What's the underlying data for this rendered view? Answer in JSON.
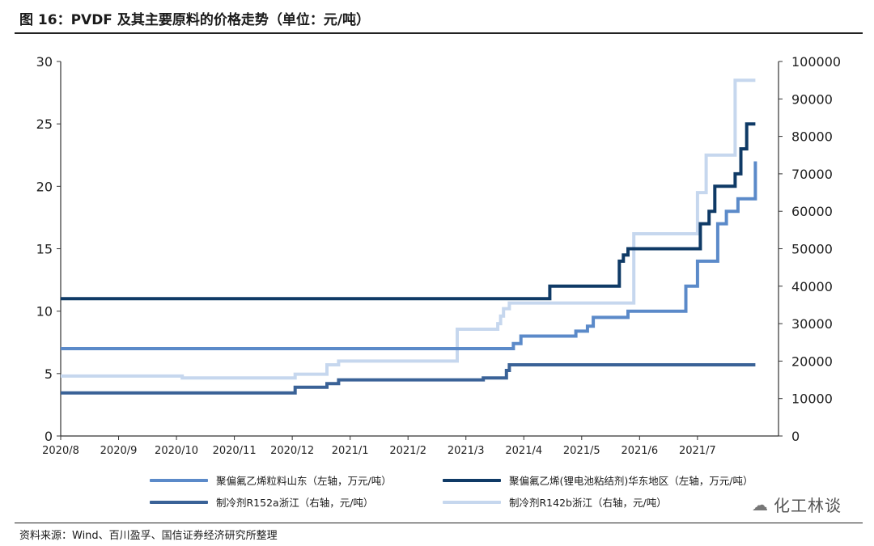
{
  "title": "图 16：PVDF 及其主要原料的价格走势（单位：元/吨）",
  "source": "资料来源：Wind、百川盈孚、国信证券经济研究所整理",
  "watermark": {
    "icon": "wechat-icon",
    "text": "化工林谈"
  },
  "chart_data": {
    "type": "line",
    "x_ticks": [
      "2020/8",
      "2020/9",
      "2020/10",
      "2020/11",
      "2020/12",
      "2021/1",
      "2021/2",
      "2021/3",
      "2021/4",
      "2021/5",
      "2021/6",
      "2021/7"
    ],
    "xlim": [
      0,
      12.4
    ],
    "y_left": {
      "lim": [
        0,
        30
      ],
      "ticks": [
        0,
        5,
        10,
        15,
        20,
        25,
        30
      ]
    },
    "y_right": {
      "lim": [
        0,
        100000
      ],
      "ticks": [
        0,
        10000,
        20000,
        30000,
        40000,
        50000,
        60000,
        70000,
        80000,
        90000,
        100000
      ]
    },
    "grid": false,
    "legend_position": "bottom",
    "series": [
      {
        "name": "聚偏氟乙烯粒料山东（左轴，万元/吨）",
        "axis": "left",
        "color": "#5b8ac9",
        "x": [
          0,
          7.75,
          7.82,
          7.95,
          8.8,
          8.9,
          9.1,
          9.2,
          9.3,
          9.4,
          9.7,
          9.8,
          10.3,
          10.4,
          10.75,
          10.8,
          10.95,
          11.0,
          11.3,
          11.35,
          11.45,
          11.5,
          11.65,
          11.7,
          12.0
        ],
        "y": [
          7.0,
          7.0,
          7.4,
          8.0,
          8.0,
          8.4,
          8.8,
          9.5,
          9.5,
          9.5,
          9.5,
          10.0,
          10.0,
          10.0,
          10.0,
          12.0,
          12.0,
          14.0,
          14.0,
          17.0,
          17.0,
          18.0,
          18.0,
          19.0,
          22.0
        ]
      },
      {
        "name": "聚偏氟乙烯(锂电池粘结剂)华东地区（左轴，万元/吨）",
        "axis": "left",
        "color": "#0f3a66",
        "x": [
          0,
          8.4,
          8.45,
          9.6,
          9.65,
          9.72,
          9.8,
          11.0,
          11.05,
          11.1,
          11.2,
          11.3,
          11.5,
          11.6,
          11.65,
          11.75,
          11.85,
          12.0
        ],
        "y": [
          11.0,
          11.0,
          12.0,
          12.0,
          14.0,
          14.5,
          15.0,
          15.0,
          17.0,
          17.0,
          18.0,
          20.0,
          20.0,
          20.0,
          21.0,
          23.0,
          25.0,
          25.0
        ]
      },
      {
        "name": "制冷剂R152a浙江（右轴，元/吨）",
        "axis": "right",
        "color": "#3a6297",
        "x": [
          0,
          4.0,
          4.05,
          4.55,
          4.6,
          4.75,
          4.8,
          7.25,
          7.3,
          7.6,
          7.7,
          7.75,
          12.0
        ],
        "y": [
          11500,
          11500,
          13000,
          13000,
          14000,
          14000,
          15000,
          15000,
          15500,
          15500,
          17500,
          19000,
          19000
        ]
      },
      {
        "name": "制冷剂R142b浙江（右轴，元/吨）",
        "axis": "right",
        "color": "#c6d7ee",
        "x": [
          0,
          2.05,
          2.1,
          4.0,
          4.05,
          4.5,
          4.6,
          4.75,
          4.8,
          6.8,
          6.85,
          7.5,
          7.55,
          7.6,
          7.65,
          7.75,
          9.85,
          9.9,
          10.95,
          11.0,
          11.1,
          11.15,
          11.6,
          11.65,
          12.0
        ],
        "y": [
          16000,
          16000,
          15500,
          15500,
          16500,
          16500,
          19000,
          19000,
          20000,
          20000,
          28500,
          28500,
          30000,
          32000,
          34000,
          35500,
          35500,
          54000,
          54000,
          65000,
          65000,
          75000,
          75000,
          95000,
          95000
        ]
      }
    ]
  }
}
